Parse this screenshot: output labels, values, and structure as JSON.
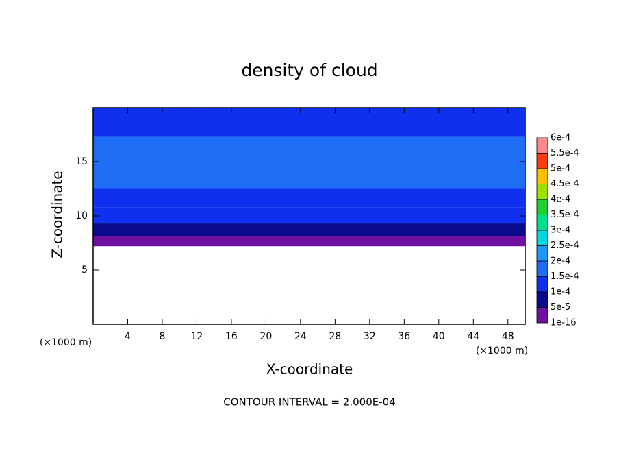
{
  "chart_data": {
    "type": "contour",
    "title": "density of cloud",
    "xlabel": "X-coordinate",
    "ylabel": "Z-coordinate",
    "x_unit": "(×1000 m)",
    "y_unit": "(×1000 m)",
    "annotation": "CONTOUR INTERVAL = 2.000E-04",
    "xlim": [
      0,
      50
    ],
    "xticks": [
      4,
      8,
      12,
      16,
      20,
      24,
      28,
      32,
      36,
      40,
      44,
      48
    ],
    "ylim": [
      0,
      20
    ],
    "yticks": [
      5,
      10,
      15
    ],
    "profile": {
      "z": [
        7.2,
        8.1,
        9.3,
        10.8,
        12.5,
        17.3
      ],
      "values": [
        2e-05,
        7e-05,
        0.00011,
        0.00013,
        0.00016,
        0.00013
      ]
    },
    "colorbar": {
      "levels": [
        {
          "value": 1e-16,
          "label": "1e-16"
        },
        {
          "value": 5e-05,
          "label": "5e-5"
        },
        {
          "value": 0.0001,
          "label": "1e-4"
        },
        {
          "value": 0.00015,
          "label": "1.5e-4"
        },
        {
          "value": 0.0002,
          "label": "2e-4"
        },
        {
          "value": 0.00025,
          "label": "2.5e-4"
        },
        {
          "value": 0.0003,
          "label": "3e-4"
        },
        {
          "value": 0.00035,
          "label": "3.5e-4"
        },
        {
          "value": 0.0004,
          "label": "4e-4"
        },
        {
          "value": 0.00045,
          "label": "4.5e-4"
        },
        {
          "value": 0.0005,
          "label": "5e-4"
        },
        {
          "value": 0.00055,
          "label": "5.5e-4"
        },
        {
          "value": 0.0006,
          "label": "6e-4"
        }
      ],
      "colors": [
        "#6e10a0",
        "#0a0a8c",
        "#1030f0",
        "#1e6ef5",
        "#1e98ff",
        "#00d8e0",
        "#00e08c",
        "#20d030",
        "#a0e000",
        "#ffc000",
        "#ff3a10",
        "#ff8a8a"
      ]
    }
  }
}
